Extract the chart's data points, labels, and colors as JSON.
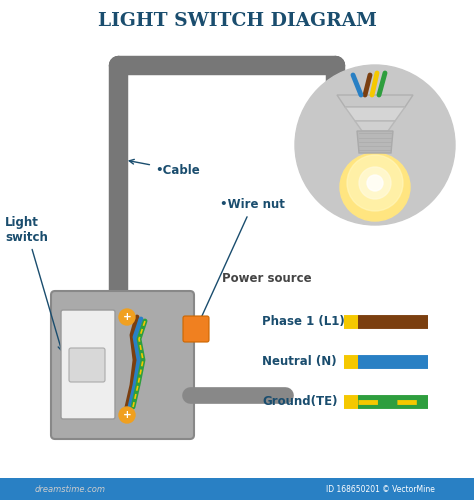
{
  "title": "LIGHT SWITCH DIAGRAM",
  "title_color": "#1a4d6e",
  "title_fontsize": 13.5,
  "bg_color": "#ffffff",
  "labels": {
    "cable": "•Cable",
    "light_switch": "Light\nswitch",
    "wire_nut": "•Wire nut",
    "power_source": "Power source"
  },
  "label_color": "#1a4d6e",
  "label_fontsize": 8.5,
  "legend": [
    {
      "name": "Phase 1 (L1)",
      "color_yellow": "#f5c800",
      "color_main": "#7b3f10",
      "stripe": false
    },
    {
      "name": "Neutral (N)",
      "color_yellow": "#f5c800",
      "color_main": "#2980c4",
      "stripe": false
    },
    {
      "name": "Ground(TE)",
      "color_yellow": "#f5c800",
      "color_main": "#2e9e3e",
      "stripe": true,
      "stripe_color": "#f5c800"
    }
  ],
  "legend_label_color": "#1a4d6e",
  "legend_fontsize": 8.5,
  "cable_color": "#777777",
  "cable_lw": 14,
  "switch_box_color": "#aaaaaa",
  "switch_box_edge": "#888888",
  "bulb_circle_color": "#c8c8c8",
  "socket_color": "#c0c0c0",
  "bulb_color": "#ffe580",
  "terminal_color": "#f0a020",
  "wire_nut_color": "#f08020",
  "power_cable_color": "#888888",
  "bottom_bar_color": "#2980c4",
  "dreamstime_color": "#cccccc",
  "vectormine_color": "#aaaaaa"
}
